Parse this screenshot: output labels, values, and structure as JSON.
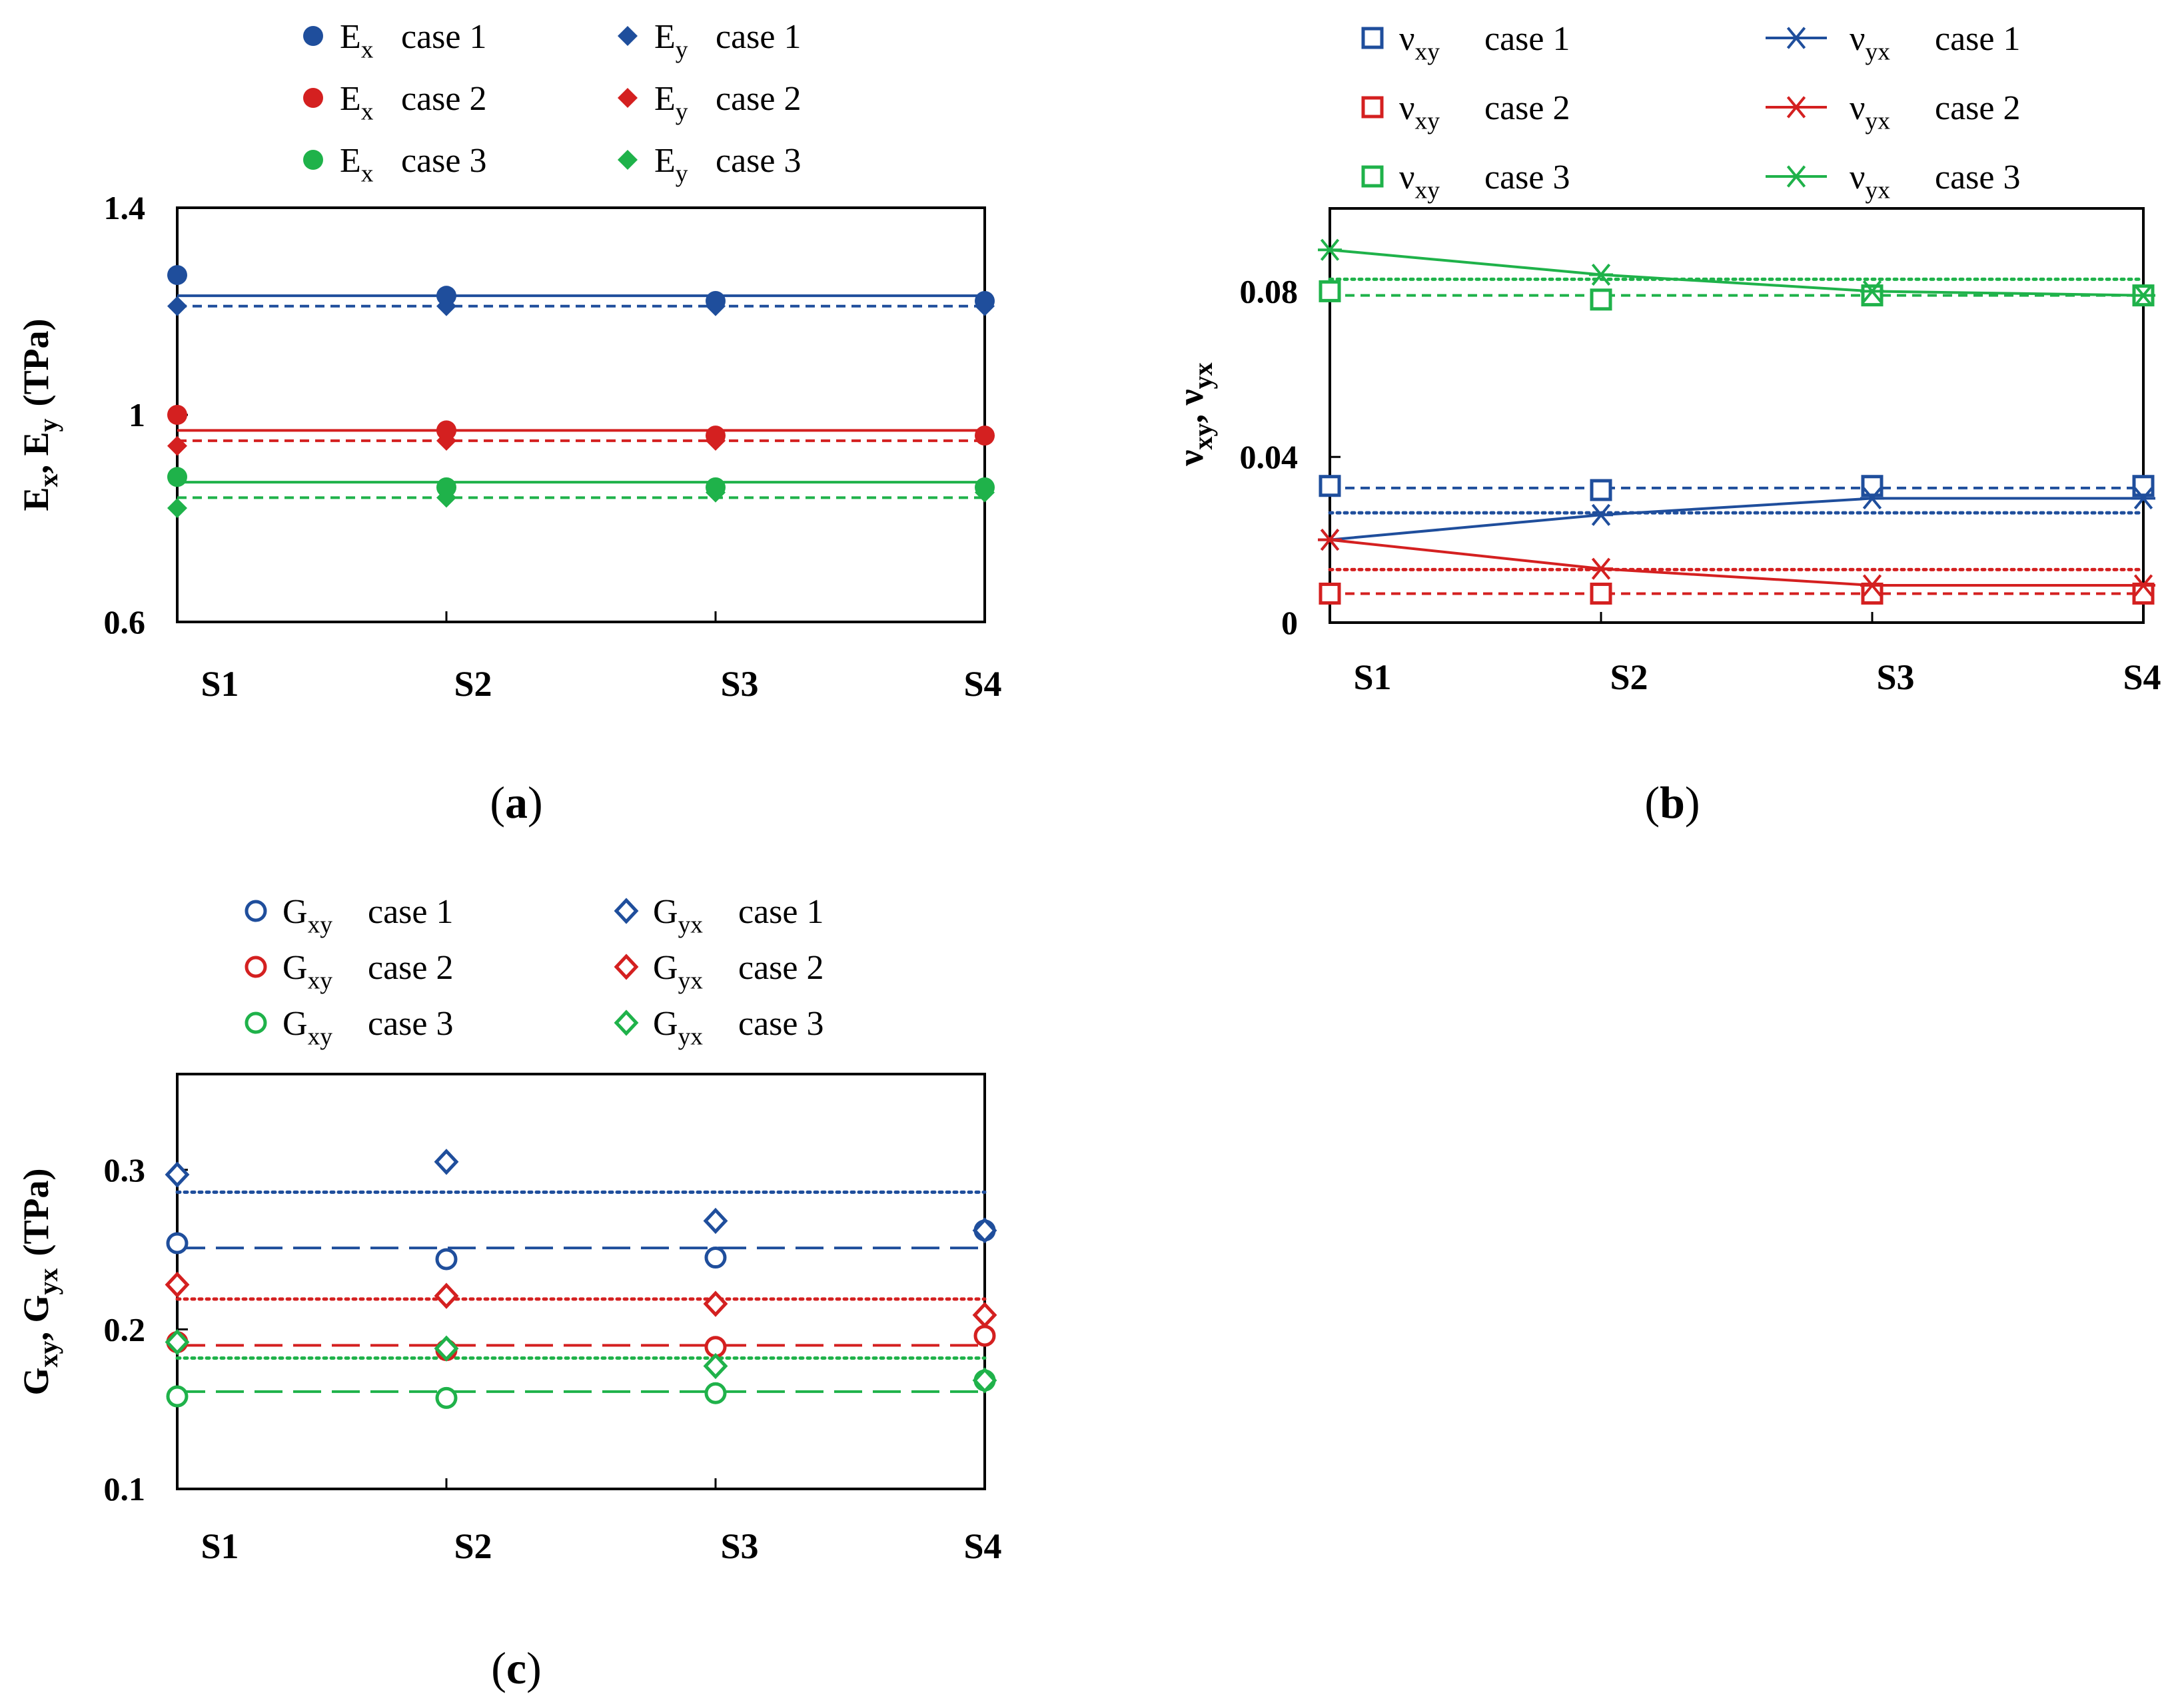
{
  "colors": {
    "case1": "#1f4e9c",
    "case2": "#d42020",
    "case3": "#1fb24a"
  },
  "chart_data": [
    {
      "id": "a",
      "type": "line",
      "panel_label": "a",
      "categories": [
        "S1",
        "S2",
        "S3",
        "S4"
      ],
      "ylabel": "Ex, Ey (TPa)",
      "ylabel_parts": {
        "v1": "E",
        "s1": "x",
        "sep": ", ",
        "v2": "E",
        "s2": "y",
        "unit": "(TPa)"
      },
      "ylim": [
        0.6,
        1.4
      ],
      "yticks": [
        0.6,
        1.0,
        1.4
      ],
      "ytick_labels": [
        "0.6",
        "1",
        "1.4"
      ],
      "series": [
        {
          "name": "Ex case 1",
          "var": "E",
          "sub": "x",
          "case": "case 1",
          "color": "#1f4e9c",
          "marker": "circle-filled",
          "values": [
            1.27,
            1.23,
            1.22,
            1.22
          ]
        },
        {
          "name": "Ey case 1",
          "var": "E",
          "sub": "y",
          "case": "case 1",
          "color": "#1f4e9c",
          "marker": "diamond-filled",
          "values": [
            1.21,
            1.21,
            1.21,
            1.21
          ]
        },
        {
          "name": "Ex case 2",
          "var": "E",
          "sub": "x",
          "case": "case 2",
          "color": "#d42020",
          "marker": "circle-filled",
          "values": [
            1.0,
            0.97,
            0.96,
            0.96
          ]
        },
        {
          "name": "Ey case 2",
          "var": "E",
          "sub": "y",
          "case": "case 2",
          "color": "#d42020",
          "marker": "diamond-filled",
          "values": [
            0.94,
            0.95,
            0.95,
            0.96
          ]
        },
        {
          "name": "Ex case 3",
          "var": "E",
          "sub": "x",
          "case": "case 3",
          "color": "#1fb24a",
          "marker": "circle-filled",
          "values": [
            0.88,
            0.86,
            0.86,
            0.86
          ]
        },
        {
          "name": "Ey case 3",
          "var": "E",
          "sub": "y",
          "case": "case 3",
          "color": "#1fb24a",
          "marker": "diamond-filled",
          "values": [
            0.82,
            0.84,
            0.85,
            0.85
          ]
        }
      ],
      "reference_lines": [
        {
          "color": "#1f4e9c",
          "style": "solid",
          "value": 1.23
        },
        {
          "color": "#1f4e9c",
          "style": "dashed",
          "value": 1.21
        },
        {
          "color": "#d42020",
          "style": "solid",
          "value": 0.97
        },
        {
          "color": "#d42020",
          "style": "dashed",
          "value": 0.95
        },
        {
          "color": "#1fb24a",
          "style": "solid",
          "value": 0.87
        },
        {
          "color": "#1fb24a",
          "style": "dashed",
          "value": 0.84
        }
      ]
    },
    {
      "id": "b",
      "type": "line",
      "panel_label": "b",
      "categories": [
        "S1",
        "S2",
        "S3",
        "S4"
      ],
      "ylabel": "νxy, νyx",
      "ylabel_parts": {
        "v1": "ν",
        "s1": "xy",
        "sep": ", ",
        "v2": "ν",
        "s2": "yx",
        "unit": ""
      },
      "ylim": [
        0,
        0.1
      ],
      "yticks": [
        0,
        0.04,
        0.08
      ],
      "ytick_labels": [
        "0",
        "0.04",
        "0.08"
      ],
      "series": [
        {
          "name": "νxy case 1",
          "var": "ν",
          "sub": "xy",
          "case": "case 1",
          "color": "#1f4e9c",
          "marker": "square-open",
          "connected": false,
          "values": [
            0.033,
            0.032,
            0.033,
            0.033
          ]
        },
        {
          "name": "νyx case 1",
          "var": "ν",
          "sub": "yx",
          "case": "case 1",
          "color": "#1f4e9c",
          "marker": "asterisk",
          "connected": true,
          "values": [
            0.02,
            0.026,
            0.03,
            0.03
          ]
        },
        {
          "name": "νxy case 2",
          "var": "ν",
          "sub": "xy",
          "case": "case 2",
          "color": "#d42020",
          "marker": "square-open",
          "connected": false,
          "values": [
            0.007,
            0.007,
            0.007,
            0.007
          ]
        },
        {
          "name": "νyx case 2",
          "var": "ν",
          "sub": "yx",
          "case": "case 2",
          "color": "#d42020",
          "marker": "asterisk",
          "connected": true,
          "values": [
            0.02,
            0.013,
            0.009,
            0.009
          ]
        },
        {
          "name": "νxy case 3",
          "var": "ν",
          "sub": "xy",
          "case": "case 3",
          "color": "#1fb24a",
          "marker": "square-open",
          "connected": false,
          "values": [
            0.08,
            0.078,
            0.079,
            0.079
          ]
        },
        {
          "name": "νyx case 3",
          "var": "ν",
          "sub": "yx",
          "case": "case 3",
          "color": "#1fb24a",
          "marker": "asterisk",
          "connected": true,
          "values": [
            0.09,
            0.084,
            0.08,
            0.079
          ]
        }
      ],
      "reference_lines": [
        {
          "color": "#1f4e9c",
          "style": "dashed",
          "value": 0.0325
        },
        {
          "color": "#1f4e9c",
          "style": "dotted",
          "value": 0.0265
        },
        {
          "color": "#d42020",
          "style": "dashed",
          "value": 0.007
        },
        {
          "color": "#d42020",
          "style": "dotted",
          "value": 0.0128
        },
        {
          "color": "#1fb24a",
          "style": "dashed",
          "value": 0.079
        },
        {
          "color": "#1fb24a",
          "style": "dotted",
          "value": 0.0829
        }
      ]
    },
    {
      "id": "c",
      "type": "scatter",
      "panel_label": "c",
      "categories": [
        "S1",
        "S2",
        "S3",
        "S4"
      ],
      "ylabel": "Gxy, Gyx (TPa)",
      "ylabel_parts": {
        "v1": "G",
        "s1": "xy",
        "sep": ", ",
        "v2": "G",
        "s2": "yx",
        "unit": "(TPa)"
      },
      "ylim": [
        0.1,
        0.36
      ],
      "yticks": [
        0.1,
        0.2,
        0.3
      ],
      "ytick_labels": [
        "0.1",
        "0.2",
        "0.3"
      ],
      "series": [
        {
          "name": "Gxy case 1",
          "var": "G",
          "sub": "xy",
          "case": "case 1",
          "color": "#1f4e9c",
          "marker": "circle-open",
          "values": [
            0.254,
            0.244,
            0.245,
            0.262
          ]
        },
        {
          "name": "Gyx case 1",
          "var": "G",
          "sub": "yx",
          "case": "case 1",
          "color": "#1f4e9c",
          "marker": "diamond-open",
          "values": [
            0.297,
            0.305,
            0.268,
            0.262
          ]
        },
        {
          "name": "Gxy case 2",
          "var": "G",
          "sub": "xy",
          "case": "case 2",
          "color": "#d42020",
          "marker": "circle-open",
          "values": [
            0.192,
            0.187,
            0.189,
            0.196
          ]
        },
        {
          "name": "Gyx case 2",
          "var": "G",
          "sub": "yx",
          "case": "case 2",
          "color": "#d42020",
          "marker": "diamond-open",
          "values": [
            0.228,
            0.221,
            0.216,
            0.209
          ]
        },
        {
          "name": "Gxy case 3",
          "var": "G",
          "sub": "xy",
          "case": "case 3",
          "color": "#1fb24a",
          "marker": "circle-open",
          "values": [
            0.158,
            0.157,
            0.16,
            0.168
          ]
        },
        {
          "name": "Gyx case 3",
          "var": "G",
          "sub": "yx",
          "case": "case 3",
          "color": "#1fb24a",
          "marker": "diamond-open",
          "values": [
            0.192,
            0.188,
            0.177,
            0.168
          ]
        }
      ],
      "reference_lines": [
        {
          "color": "#1f4e9c",
          "style": "dotted",
          "value": 0.286
        },
        {
          "color": "#1f4e9c",
          "style": "longdash",
          "value": 0.251
        },
        {
          "color": "#d42020",
          "style": "dotted",
          "value": 0.219
        },
        {
          "color": "#d42020",
          "style": "longdash",
          "value": 0.19
        },
        {
          "color": "#1fb24a",
          "style": "dotted",
          "value": 0.182
        },
        {
          "color": "#1fb24a",
          "style": "longdash",
          "value": 0.161
        }
      ]
    }
  ]
}
